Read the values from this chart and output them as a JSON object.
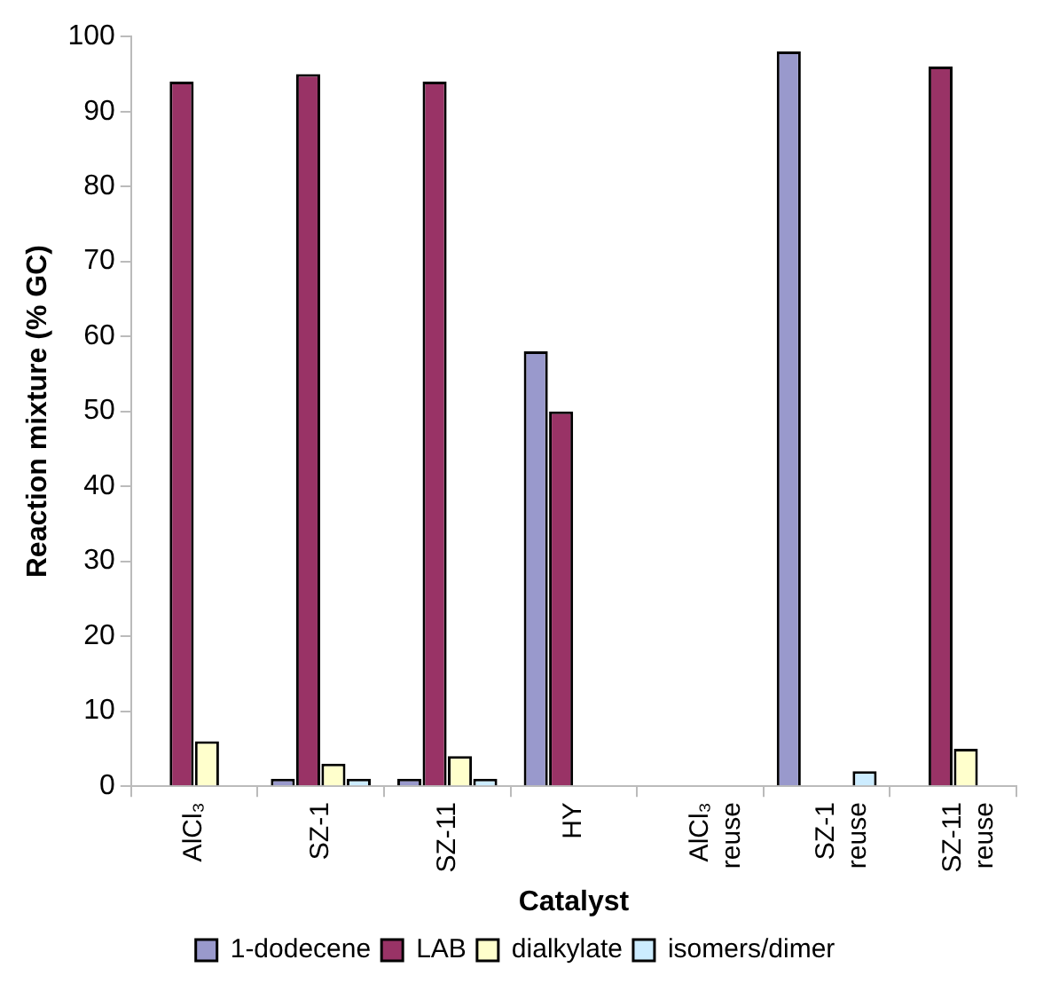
{
  "chart_data": {
    "type": "bar",
    "xlabel": "Catalyst",
    "ylabel": "Reaction mixture (% GC)",
    "categories": [
      "AlCl₃",
      "SZ-1",
      "SZ-11",
      "HY",
      "AlCl₃ reuse",
      "SZ-1 reuse",
      "SZ-11 reuse"
    ],
    "series": [
      {
        "name": "1-dodecene",
        "color": "#9999cc",
        "values": [
          null,
          1,
          1,
          58,
          null,
          98,
          null
        ]
      },
      {
        "name": "LAB",
        "color": "#993366",
        "values": [
          94,
          95,
          94,
          50,
          null,
          null,
          96
        ]
      },
      {
        "name": "dialkylate",
        "color": "#ffffcc",
        "values": [
          6,
          3,
          4,
          null,
          null,
          null,
          5
        ]
      },
      {
        "name": "isomers/dimer",
        "color": "#ccecff",
        "values": [
          null,
          1,
          1,
          null,
          null,
          2,
          null
        ]
      }
    ],
    "ylim": [
      0,
      100
    ],
    "yticks": [
      0,
      10,
      20,
      30,
      40,
      50,
      60,
      70,
      80,
      90,
      100
    ],
    "grid": false,
    "legend": "bottom"
  }
}
